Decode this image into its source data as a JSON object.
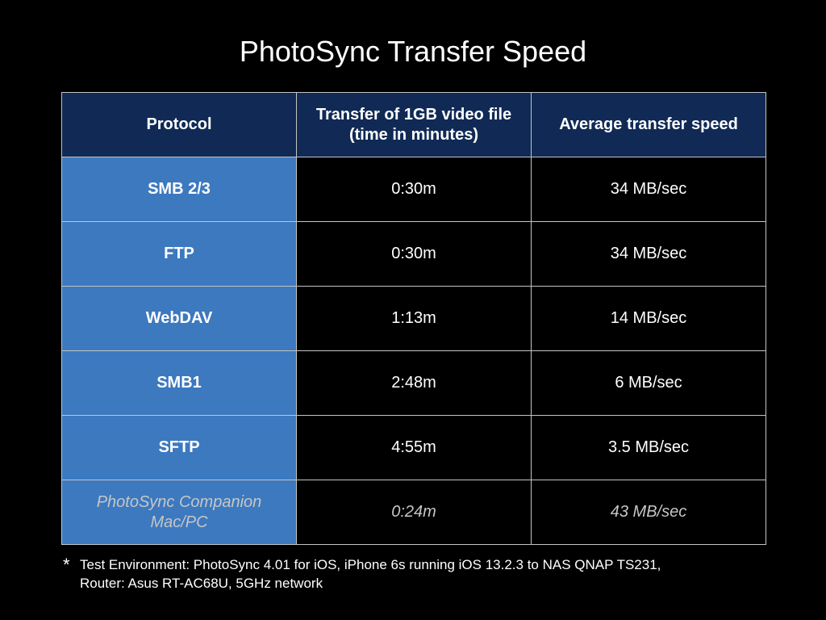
{
  "title": "PhotoSync Transfer Speed",
  "table": {
    "headers": {
      "protocol": "Protocol",
      "time_line1": "Transfer of 1GB video file",
      "time_line2": "(time in minutes)",
      "speed": "Average transfer speed"
    },
    "rows": [
      {
        "protocol": "SMB 2/3",
        "time": "0:30m",
        "speed": "34 MB/sec"
      },
      {
        "protocol": "FTP",
        "time": "0:30m",
        "speed": "34 MB/sec"
      },
      {
        "protocol": "WebDAV",
        "time": "1:13m",
        "speed": "14 MB/sec"
      },
      {
        "protocol": "SMB1",
        "time": "2:48m",
        "speed": "6 MB/sec"
      },
      {
        "protocol": "SFTP",
        "time": "4:55m",
        "speed": "3.5 MB/sec"
      }
    ],
    "companion": {
      "protocol_line1": "PhotoSync Companion",
      "protocol_line2": "Mac/PC",
      "time": "0:24m",
      "speed": "43 MB/sec"
    }
  },
  "footnote": {
    "marker": "*",
    "line1": "Test Environment: PhotoSync 4.01 for iOS, iPhone 6s running iOS 13.2.3 to NAS QNAP TS231,",
    "line2": "Router: Asus RT-AC68U, 5GHz network"
  },
  "colors": {
    "background": "#000000",
    "header_fill": "#102a55",
    "protocol_fill": "#3c79bf",
    "border": "#c4c4c4"
  }
}
